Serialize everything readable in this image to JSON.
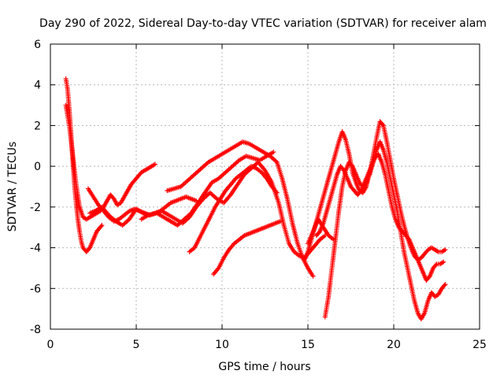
{
  "chart_data": {
    "type": "scatter",
    "title": "Day 290 of 2022, Sidereal Day-to-day VTEC variation (SDTVAR) for receiver alam",
    "xlabel": "GPS time / hours",
    "ylabel": "SDTVAR / TECUs",
    "xlim": [
      0,
      25
    ],
    "ylim": [
      -8,
      6
    ],
    "xticks": [
      0,
      5,
      10,
      15,
      20,
      25
    ],
    "yticks": [
      -8,
      -6,
      -4,
      -2,
      0,
      2,
      4,
      6
    ],
    "grid": true,
    "marker": "+",
    "color": "#ff0000",
    "series": [
      {
        "x": [
          0.9,
          1.0,
          1.1,
          1.2,
          1.3,
          1.4,
          1.5,
          1.6,
          1.7,
          1.8,
          1.9,
          2.0,
          2.1,
          2.2,
          2.3,
          2.4,
          2.5,
          2.6,
          2.7,
          2.8,
          2.9,
          3.0
        ],
        "y": [
          4.3,
          3.8,
          2.8,
          1.6,
          0.3,
          -0.9,
          -1.8,
          -2.6,
          -3.2,
          -3.7,
          -4.0,
          -4.1,
          -4.2,
          -4.1,
          -4.0,
          -3.8,
          -3.6,
          -3.4,
          -3.2,
          -3.1,
          -3.0,
          -2.9
        ]
      },
      {
        "x": [
          0.9,
          1.1,
          1.3,
          1.5,
          1.7,
          1.9,
          2.1,
          2.3,
          2.5,
          2.7,
          2.9,
          3.1,
          3.3,
          3.5,
          3.7,
          3.9,
          4.1,
          4.3,
          4.5,
          4.7,
          4.9,
          5.1,
          5.3,
          5.5,
          5.7,
          5.9,
          6.1
        ],
        "y": [
          3.0,
          2.0,
          0.6,
          -0.9,
          -2.0,
          -2.5,
          -2.6,
          -2.5,
          -2.4,
          -2.3,
          -2.2,
          -2.0,
          -1.7,
          -1.4,
          -1.6,
          -1.9,
          -1.8,
          -1.5,
          -1.2,
          -0.9,
          -0.7,
          -0.5,
          -0.3,
          -0.2,
          -0.1,
          0.0,
          0.1
        ]
      },
      {
        "x": [
          2.3,
          2.6,
          3.0,
          3.4,
          3.8,
          4.2,
          4.6,
          5.0,
          5.4,
          5.8,
          6.2,
          6.6,
          7.0,
          7.4,
          7.8,
          8.2,
          8.6,
          9.0,
          9.4,
          9.8,
          10.2,
          10.6,
          11.0,
          11.4,
          11.8,
          12.2,
          12.6,
          13.0
        ],
        "y": [
          -2.3,
          -2.2,
          -2.0,
          -2.4,
          -2.7,
          -2.9,
          -2.6,
          -2.1,
          -2.3,
          -2.4,
          -2.3,
          -2.5,
          -2.7,
          -2.9,
          -2.6,
          -2.3,
          -1.8,
          -1.3,
          -0.8,
          -0.6,
          -0.3,
          0.0,
          0.3,
          0.5,
          0.4,
          0.3,
          0.5,
          0.7
        ]
      },
      {
        "x": [
          2.2,
          2.5,
          2.8,
          3.1,
          3.4,
          3.7,
          4.0,
          4.3,
          4.6,
          4.9,
          5.2,
          5.5,
          5.8,
          6.1,
          6.4,
          6.7,
          7.0,
          7.3,
          7.6,
          7.9,
          8.2,
          8.5
        ],
        "y": [
          -1.1,
          -1.5,
          -1.9,
          -2.2,
          -2.5,
          -2.7,
          -2.6,
          -2.4,
          -2.2,
          -2.1,
          -2.2,
          -2.3,
          -2.4,
          -2.3,
          -2.2,
          -2.0,
          -1.8,
          -1.7,
          -1.6,
          -1.5,
          -1.6,
          -1.7
        ]
      },
      {
        "x": [
          5.3,
          5.7,
          6.1,
          6.5,
          6.9,
          7.3,
          7.7,
          8.1,
          8.5,
          8.9,
          9.3,
          9.7,
          10.1,
          10.5,
          10.9,
          11.3,
          11.7,
          12.1,
          12.5,
          12.9,
          13.3,
          13.6,
          13.9,
          14.2,
          14.5,
          14.8,
          15.1,
          15.4,
          15.7,
          16.0
        ],
        "y": [
          -2.6,
          -2.4,
          -2.3,
          -2.2,
          -2.4,
          -2.6,
          -2.8,
          -2.5,
          -2.0,
          -1.6,
          -1.3,
          -1.6,
          -1.8,
          -1.4,
          -0.9,
          -0.4,
          -0.1,
          0.2,
          -0.2,
          -0.8,
          -1.8,
          -2.9,
          -3.8,
          -4.2,
          -4.4,
          -4.5,
          -4.2,
          -3.9,
          -3.6,
          -3.4
        ]
      },
      {
        "x": [
          6.8,
          7.2,
          7.6,
          8.0,
          8.4,
          8.8,
          9.2,
          9.6,
          10.0,
          10.4,
          10.8,
          11.2,
          11.6,
          12.0,
          12.4,
          12.8,
          13.2,
          13.5,
          13.8,
          14.1,
          14.4,
          14.7,
          15.0,
          15.3
        ],
        "y": [
          -1.2,
          -1.1,
          -1.0,
          -0.7,
          -0.4,
          -0.1,
          0.2,
          0.4,
          0.6,
          0.8,
          1.0,
          1.2,
          1.1,
          0.9,
          0.7,
          0.5,
          0.2,
          -0.6,
          -1.6,
          -2.8,
          -3.8,
          -4.5,
          -5.0,
          -5.4
        ]
      },
      {
        "x": [
          8.1,
          8.4,
          8.7,
          9.0,
          9.3,
          9.6,
          9.9,
          10.2,
          10.5,
          10.8,
          11.1,
          11.4,
          11.7,
          12.0,
          12.3,
          12.6,
          12.9,
          13.2
        ],
        "y": [
          -4.2,
          -4.0,
          -3.5,
          -3.0,
          -2.5,
          -2.0,
          -1.6,
          -1.2,
          -0.9,
          -0.6,
          -0.4,
          -0.2,
          0.0,
          -0.1,
          -0.3,
          -0.6,
          -1.0,
          -1.3
        ]
      },
      {
        "x": [
          9.5,
          9.8,
          10.1,
          10.4,
          10.7,
          11.0,
          11.3,
          11.6,
          11.9,
          12.2,
          12.5,
          12.8,
          13.1,
          13.4
        ],
        "y": [
          -5.3,
          -5.0,
          -4.5,
          -4.1,
          -3.8,
          -3.6,
          -3.4,
          -3.3,
          -3.2,
          -3.1,
          -3.0,
          -2.9,
          -2.8,
          -2.7
        ]
      },
      {
        "x": [
          14.8,
          15.0,
          15.2,
          15.4,
          15.6,
          15.8,
          16.0,
          16.2,
          16.4,
          16.6,
          16.8,
          17.0,
          17.2,
          17.4,
          17.6,
          17.8,
          18.0,
          18.2,
          18.4,
          18.6,
          18.8,
          19.0,
          19.2,
          19.4,
          19.6,
          19.8,
          20.0,
          20.2,
          20.4,
          20.6,
          20.8,
          21.0,
          21.2,
          21.4,
          21.6,
          21.8,
          22.0,
          22.2,
          22.4,
          22.6,
          22.8,
          23.0
        ],
        "y": [
          -4.6,
          -4.2,
          -3.6,
          -3.0,
          -2.4,
          -1.8,
          -1.2,
          -0.6,
          0.0,
          0.6,
          1.2,
          1.7,
          1.3,
          0.6,
          -0.3,
          -0.8,
          -1.2,
          -1.3,
          -1.0,
          -0.3,
          0.5,
          1.4,
          2.2,
          2.0,
          1.2,
          0.3,
          -0.6,
          -1.4,
          -2.2,
          -2.9,
          -3.5,
          -4.0,
          -4.4,
          -4.6,
          -4.5,
          -4.3,
          -4.1,
          -4.0,
          -4.1,
          -4.2,
          -4.2,
          -4.1
        ]
      },
      {
        "x": [
          16.0,
          16.2,
          16.4,
          16.6,
          16.8,
          17.0,
          17.2,
          17.4,
          17.6,
          17.8,
          18.0,
          18.2,
          18.4,
          18.6,
          18.8,
          19.0,
          19.2,
          19.4,
          19.6,
          19.8,
          20.0,
          20.2,
          20.4,
          20.6,
          20.8,
          21.0,
          21.2,
          21.4,
          21.6,
          21.8,
          22.0,
          22.2,
          22.4,
          22.6,
          22.8,
          23.0
        ],
        "y": [
          -7.4,
          -6.4,
          -5.0,
          -3.6,
          -2.2,
          -1.0,
          -0.2,
          0.2,
          0.0,
          -0.4,
          -0.8,
          -1.0,
          -0.8,
          -0.4,
          0.2,
          0.8,
          1.2,
          0.8,
          0.2,
          -0.6,
          -1.4,
          -2.2,
          -3.2,
          -4.2,
          -5.0,
          -5.8,
          -6.6,
          -7.2,
          -7.5,
          -7.2,
          -6.6,
          -6.2,
          -6.4,
          -6.3,
          -6.0,
          -5.8
        ]
      },
      {
        "x": [
          15.5,
          15.7,
          15.9,
          16.1,
          16.3,
          16.5,
          16.7,
          16.9,
          17.1,
          17.3,
          17.5,
          17.7,
          17.9,
          18.1,
          18.3,
          18.5,
          18.7,
          18.9,
          19.1,
          19.3,
          19.5,
          19.7,
          19.9,
          20.1,
          20.3,
          20.5,
          20.7,
          20.9,
          21.1,
          21.3,
          21.5,
          21.7,
          21.9,
          22.1,
          22.3,
          22.5,
          22.7,
          22.9
        ],
        "y": [
          -3.4,
          -3.2,
          -2.8,
          -2.2,
          -1.6,
          -1.0,
          -0.4,
          0.0,
          -0.2,
          -0.6,
          -1.0,
          -1.2,
          -1.4,
          -1.2,
          -0.8,
          -0.4,
          0.0,
          0.4,
          0.6,
          0.2,
          -0.4,
          -1.2,
          -2.0,
          -2.6,
          -3.0,
          -3.2,
          -3.4,
          -3.6,
          -4.0,
          -4.4,
          -4.8,
          -5.2,
          -5.6,
          -5.4,
          -5.0,
          -4.8,
          -4.8,
          -4.7
        ]
      },
      {
        "x": [
          15.0,
          15.3,
          15.6,
          15.9,
          16.2,
          16.5
        ],
        "y": [
          -3.8,
          -3.2,
          -2.6,
          -3.0,
          -3.4,
          -3.6
        ]
      }
    ]
  }
}
